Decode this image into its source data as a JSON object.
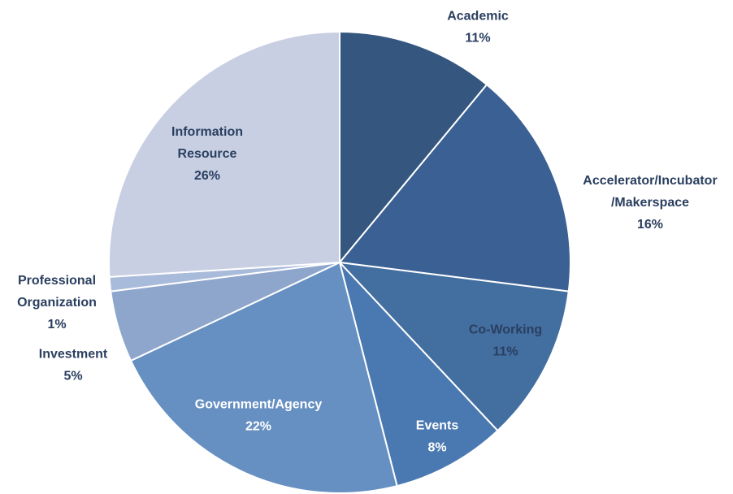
{
  "chart_data": {
    "type": "pie",
    "categories": [
      "Academic",
      "Accelerator/Incubator /Makerspace",
      "Co-Working",
      "Events",
      "Government/Agency",
      "Investment",
      "Professional Organization",
      "Information Resource"
    ],
    "values": [
      11,
      16,
      11,
      8,
      22,
      5,
      1,
      26
    ],
    "value_labels": [
      "11%",
      "16%",
      "11%",
      "8%",
      "22%",
      "5%",
      "1%",
      "26%"
    ],
    "colors": [
      "#34567f",
      "#3b6094",
      "#436ea0",
      "#4a78b0",
      "#6690c2",
      "#8fa6cc",
      "#a9bbdb",
      "#c8cfe3"
    ]
  }
}
